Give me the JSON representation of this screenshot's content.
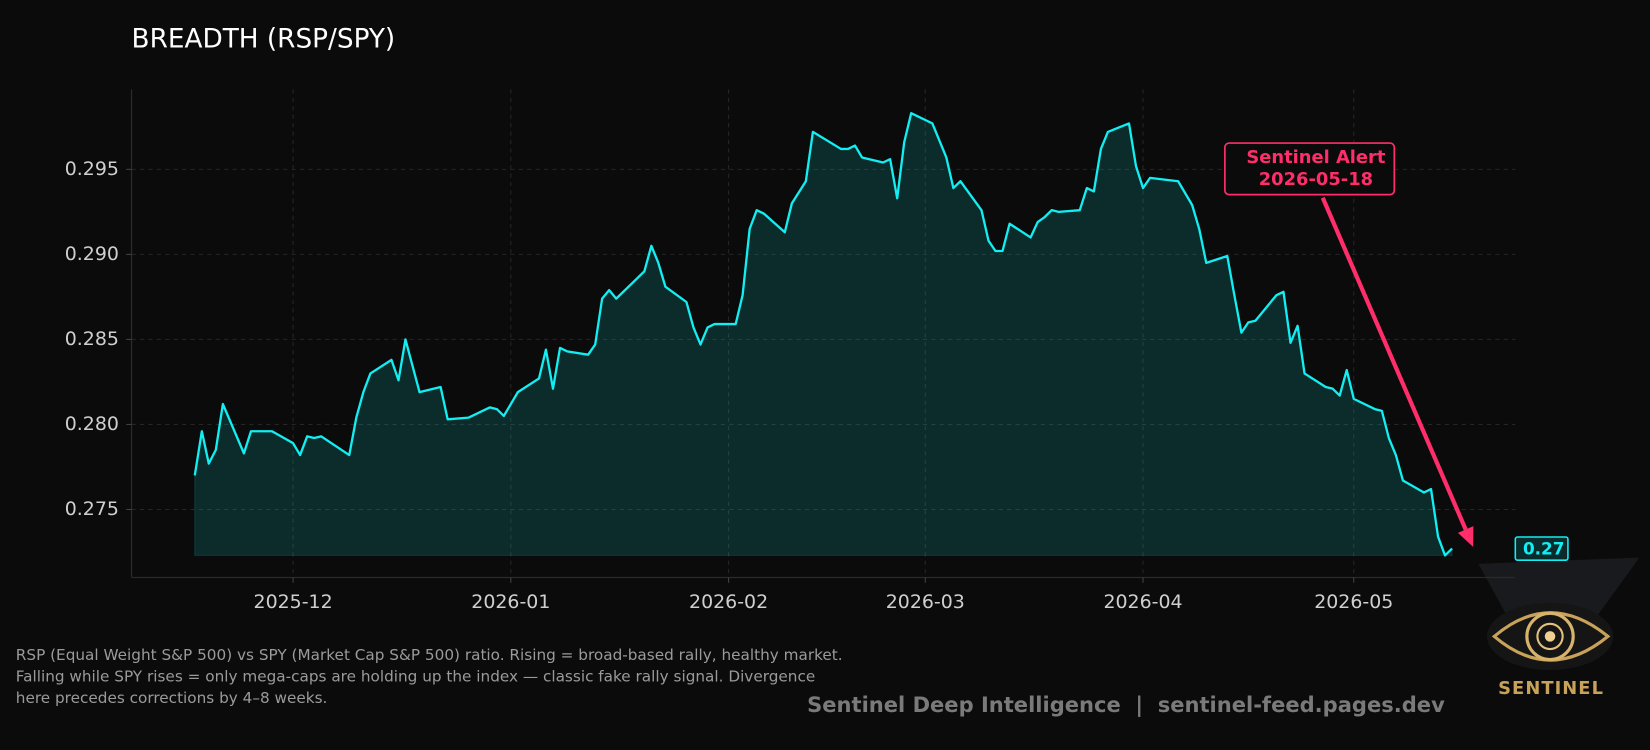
{
  "chart_data": {
    "type": "line",
    "title": "BREADTH (RSP/SPY)",
    "color": "#12eef2",
    "x": [
      "2025-11-17",
      "2025-11-18",
      "2025-11-19",
      "2025-11-20",
      "2025-11-21",
      "2025-11-24",
      "2025-11-25",
      "2025-11-28",
      "2025-12-01",
      "2025-12-02",
      "2025-12-03",
      "2025-12-04",
      "2025-12-05",
      "2025-12-09",
      "2025-12-10",
      "2025-12-11",
      "2025-12-12",
      "2025-12-15",
      "2025-12-16",
      "2025-12-17",
      "2025-12-19",
      "2025-12-22",
      "2025-12-23",
      "2025-12-26",
      "2025-12-29",
      "2025-12-30",
      "2025-12-31",
      "2026-01-02",
      "2026-01-05",
      "2026-01-06",
      "2026-01-07",
      "2026-01-08",
      "2026-01-09",
      "2026-01-12",
      "2026-01-13",
      "2026-01-14",
      "2026-01-15",
      "2026-01-16",
      "2026-01-20",
      "2026-01-21",
      "2026-01-22",
      "2026-01-23",
      "2026-01-26",
      "2026-01-27",
      "2026-01-28",
      "2026-01-29",
      "2026-01-30",
      "2026-02-02",
      "2026-02-03",
      "2026-02-04",
      "2026-02-05",
      "2026-02-06",
      "2026-02-09",
      "2026-02-10",
      "2026-02-12",
      "2026-02-13",
      "2026-02-17",
      "2026-02-18",
      "2026-02-19",
      "2026-02-20",
      "2026-02-23",
      "2026-02-24",
      "2026-02-25",
      "2026-02-26",
      "2026-02-27",
      "2026-03-02",
      "2026-03-04",
      "2026-03-05",
      "2026-03-06",
      "2026-03-09",
      "2026-03-10",
      "2026-03-11",
      "2026-03-12",
      "2026-03-13",
      "2026-03-16",
      "2026-03-17",
      "2026-03-18",
      "2026-03-19",
      "2026-03-20",
      "2026-03-23",
      "2026-03-24",
      "2026-03-25",
      "2026-03-26",
      "2026-03-27",
      "2026-03-30",
      "2026-03-31",
      "2026-04-01",
      "2026-04-02",
      "2026-04-06",
      "2026-04-08",
      "2026-04-09",
      "2026-04-10",
      "2026-04-13",
      "2026-04-14",
      "2026-04-15",
      "2026-04-16",
      "2026-04-17",
      "2026-04-20",
      "2026-04-21",
      "2026-04-22",
      "2026-04-23",
      "2026-04-24",
      "2026-04-27",
      "2026-04-28",
      "2026-04-29",
      "2026-04-30",
      "2026-05-01",
      "2026-05-04",
      "2026-05-05",
      "2026-05-06",
      "2026-05-07",
      "2026-05-08",
      "2026-05-11",
      "2026-05-12",
      "2026-05-13",
      "2026-05-14",
      "2026-05-15"
    ],
    "values": [
      0.277,
      0.2796,
      0.2777,
      0.2785,
      0.2812,
      0.2783,
      0.2796,
      0.2796,
      0.2789,
      0.2782,
      0.2793,
      0.2792,
      0.2793,
      0.2782,
      0.2804,
      0.2819,
      0.283,
      0.2838,
      0.2826,
      0.285,
      0.2819,
      0.2822,
      0.2803,
      0.2804,
      0.281,
      0.2809,
      0.2805,
      0.2819,
      0.2827,
      0.2844,
      0.2821,
      0.2845,
      0.2843,
      0.2841,
      0.2847,
      0.2874,
      0.2879,
      0.2874,
      0.289,
      0.2905,
      0.2895,
      0.2881,
      0.2872,
      0.2857,
      0.2847,
      0.2857,
      0.2859,
      0.2859,
      0.2876,
      0.2915,
      0.2926,
      0.2924,
      0.2913,
      0.293,
      0.2943,
      0.2972,
      0.2962,
      0.2962,
      0.2964,
      0.2957,
      0.2954,
      0.2956,
      0.2933,
      0.2966,
      0.2983,
      0.2977,
      0.2957,
      0.2939,
      0.2943,
      0.2926,
      0.2908,
      0.2902,
      0.2902,
      0.2918,
      0.291,
      0.2919,
      0.2922,
      0.2926,
      0.2925,
      0.2926,
      0.2939,
      0.2937,
      0.2962,
      0.2972,
      0.2977,
      0.2952,
      0.2939,
      0.2945,
      0.2943,
      0.2929,
      0.2915,
      0.2895,
      0.2899,
      0.2876,
      0.2854,
      0.286,
      0.2861,
      0.2876,
      0.2878,
      0.2848,
      0.2858,
      0.283,
      0.2822,
      0.2821,
      0.2817,
      0.2832,
      0.2815,
      0.2809,
      0.2808,
      0.2792,
      0.2782,
      0.2767,
      0.276,
      0.2762,
      0.2734,
      0.2723,
      0.2727
    ],
    "end_label": "0.27",
    "xlim": [
      "2025-11-08",
      "2026-05-24"
    ],
    "xticks": [
      "2025-12",
      "2026-01",
      "2026-02",
      "2026-03",
      "2026-04",
      "2026-05"
    ],
    "ylim": [
      0.271,
      0.2997
    ],
    "yticks": [
      0.275,
      {
        "value": 0.28,
        "label": "0.280"
      },
      0.285,
      {
        "value": 0.29,
        "label": "0.290"
      },
      0.295
    ],
    "grid": true,
    "annotation": {
      "lines": [
        "Sentinel Alert",
        "2026-05-18"
      ],
      "x": "2026-05-18",
      "y": 0.2728,
      "color": "#ff2e6a"
    },
    "footnote": [
      "RSP (Equal Weight S&P 500) vs SPY (Market Cap S&P 500) ratio. Rising = broad-based rally, healthy market.",
      "Falling while SPY rises = only mega-caps are holding up the index — classic fake rally signal. Divergence",
      "here precedes corrections by 4–8 weeks."
    ],
    "footer": "Sentinel Deep Intelligence  |  sentinel-feed.pages.dev",
    "logo_text": "SENTINEL"
  }
}
